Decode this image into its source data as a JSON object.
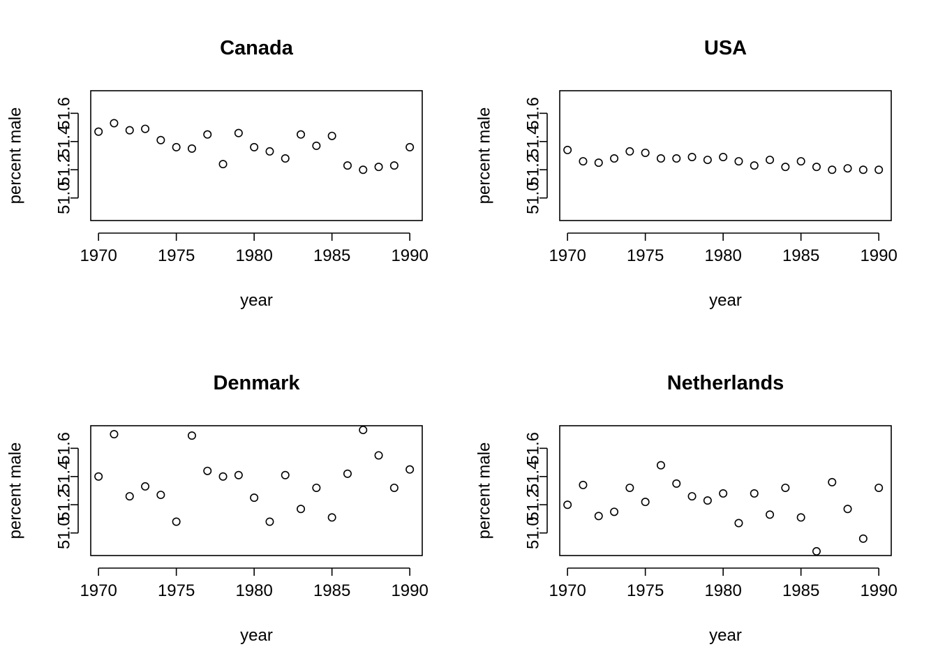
{
  "chart_data": [
    {
      "type": "scatter",
      "title": "Canada",
      "xlabel": "year",
      "ylabel": "percent male",
      "xticks": [
        1970,
        1975,
        1980,
        1985,
        1990
      ],
      "yticks": [
        51.0,
        51.2,
        51.4,
        51.6
      ],
      "ytick_labels": [
        "51.0",
        "51.2",
        "51.4",
        "51.6"
      ],
      "x": [
        1970,
        1971,
        1972,
        1973,
        1974,
        1975,
        1976,
        1977,
        1978,
        1979,
        1980,
        1981,
        1982,
        1983,
        1984,
        1985,
        1986,
        1987,
        1988,
        1989,
        1990
      ],
      "y": [
        51.47,
        51.53,
        51.48,
        51.49,
        51.41,
        51.36,
        51.35,
        51.45,
        51.24,
        51.46,
        51.36,
        51.33,
        51.28,
        51.45,
        51.37,
        51.44,
        51.23,
        51.2,
        51.22,
        51.23,
        51.36
      ]
    },
    {
      "type": "scatter",
      "title": "USA",
      "xlabel": "year",
      "ylabel": "percent male",
      "xticks": [
        1970,
        1975,
        1980,
        1985,
        1990
      ],
      "yticks": [
        51.0,
        51.2,
        51.4,
        51.6
      ],
      "ytick_labels": [
        "51.0",
        "51.2",
        "51.4",
        "51.6"
      ],
      "x": [
        1970,
        1971,
        1972,
        1973,
        1974,
        1975,
        1976,
        1977,
        1978,
        1979,
        1980,
        1981,
        1982,
        1983,
        1984,
        1985,
        1986,
        1987,
        1988,
        1989,
        1990
      ],
      "y": [
        51.34,
        51.26,
        51.25,
        51.28,
        51.33,
        51.32,
        51.28,
        51.28,
        51.29,
        51.27,
        51.29,
        51.26,
        51.23,
        51.27,
        51.22,
        51.26,
        51.22,
        51.2,
        51.21,
        51.2,
        51.2
      ]
    },
    {
      "type": "scatter",
      "title": "Denmark",
      "xlabel": "year",
      "ylabel": "percent male",
      "xticks": [
        1970,
        1975,
        1980,
        1985,
        1990
      ],
      "yticks": [
        51.0,
        51.2,
        51.4,
        51.6
      ],
      "ytick_labels": [
        "51.0",
        "51.2",
        "51.4",
        "51.6"
      ],
      "x": [
        1970,
        1971,
        1972,
        1973,
        1974,
        1975,
        1976,
        1977,
        1978,
        1979,
        1980,
        1981,
        1982,
        1983,
        1984,
        1985,
        1986,
        1987,
        1988,
        1989,
        1990
      ],
      "y": [
        51.4,
        51.7,
        51.26,
        51.33,
        51.27,
        51.08,
        51.69,
        51.44,
        51.4,
        51.41,
        51.25,
        51.08,
        51.41,
        51.17,
        51.32,
        51.11,
        51.42,
        51.73,
        51.55,
        51.32,
        51.45
      ]
    },
    {
      "type": "scatter",
      "title": "Netherlands",
      "xlabel": "year",
      "ylabel": "percent male",
      "xticks": [
        1970,
        1975,
        1980,
        1985,
        1990
      ],
      "yticks": [
        51.0,
        51.2,
        51.4,
        51.6
      ],
      "ytick_labels": [
        "51.0",
        "51.2",
        "51.4",
        "51.6"
      ],
      "x": [
        1970,
        1971,
        1972,
        1973,
        1974,
        1975,
        1976,
        1977,
        1978,
        1979,
        1980,
        1981,
        1982,
        1983,
        1984,
        1985,
        1986,
        1987,
        1988,
        1989,
        1990
      ],
      "y": [
        51.2,
        51.34,
        51.12,
        51.15,
        51.32,
        51.22,
        51.48,
        51.35,
        51.26,
        51.23,
        51.28,
        51.07,
        51.28,
        51.13,
        51.32,
        51.11,
        50.87,
        51.36,
        51.17,
        50.96,
        51.32
      ]
    }
  ],
  "shared_axes": {
    "xlim": [
      1969.5,
      1990.8
    ],
    "ylim": [
      50.84,
      51.76
    ]
  }
}
